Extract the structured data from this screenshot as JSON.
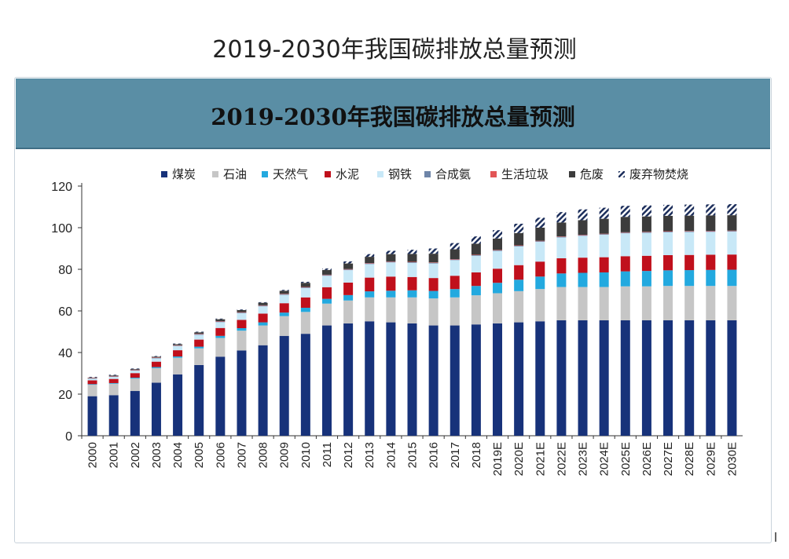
{
  "page_title": "2019-2030年我国碳排放总量预测",
  "colors": {
    "煤炭": "#17327a",
    "石油": "#c6c6c6",
    "天然气": "#23a9df",
    "水泥": "#c0101c",
    "钢铁": "#c8e8f7",
    "合成氨": "#6e85a8",
    "生活垃圾": "#e25556",
    "危废": "#3c3c3c",
    "废弃物焚烧": "hatch"
  },
  "chart_data": {
    "type": "bar",
    "stacked": true,
    "title": "2019-2030年我国碳排放总量预测",
    "xlabel": "",
    "ylabel": "",
    "ylim": [
      0,
      120
    ],
    "yticks": [
      0,
      20,
      40,
      60,
      80,
      100,
      120
    ],
    "grid": false,
    "legend_position": "top",
    "categories": [
      "2000",
      "2001",
      "2002",
      "2003",
      "2004",
      "2005",
      "2006",
      "2007",
      "2008",
      "2009",
      "2010",
      "2011",
      "2012",
      "2013",
      "2014",
      "2015",
      "2016",
      "2017",
      "2018",
      "2019E",
      "2020E",
      "2021E",
      "2022E",
      "2023E",
      "2024E",
      "2025E",
      "2026E",
      "2027E",
      "2028E",
      "2029E",
      "2030E"
    ],
    "series": [
      {
        "name": "煤炭",
        "values": [
          19,
          19.5,
          21.5,
          25.5,
          29.5,
          34,
          38,
          41,
          43.5,
          48,
          49,
          53,
          54,
          55,
          54.5,
          54,
          53,
          53,
          53.5,
          54,
          54.5,
          55,
          55.5,
          55.5,
          55.5,
          55.5,
          55.5,
          55.5,
          55.5,
          55.5,
          55.5
        ]
      },
      {
        "name": "石油",
        "values": [
          5.5,
          5.5,
          6,
          7,
          8,
          8,
          9,
          9.5,
          9.5,
          9.5,
          10.5,
          10.5,
          11,
          11.5,
          12,
          12.5,
          13,
          13.5,
          14,
          14.5,
          15,
          15.5,
          16,
          16,
          16,
          16.3,
          16.3,
          16.5,
          16.5,
          16.5,
          16.5
        ]
      },
      {
        "name": "天然气",
        "values": [
          0.3,
          0.3,
          0.4,
          0.5,
          0.6,
          0.8,
          1,
          1.2,
          1.5,
          1.7,
          2,
          2.3,
          2.6,
          2.9,
          3.2,
          3.4,
          3.6,
          4,
          4.5,
          5,
          5.5,
          6,
          6.5,
          6.8,
          7,
          7.2,
          7.4,
          7.5,
          7.6,
          7.7,
          7.8
        ]
      },
      {
        "name": "水泥",
        "values": [
          1.8,
          2,
          2.2,
          2.6,
          3,
          3.4,
          3.8,
          4,
          4.2,
          4.5,
          5,
          5.6,
          6,
          6.6,
          6.8,
          6.4,
          6.2,
          6.4,
          6.5,
          6.8,
          7,
          7.2,
          7.3,
          7.3,
          7.3,
          7.3,
          7.3,
          7.3,
          7.3,
          7.3,
          7.3
        ]
      },
      {
        "name": "钢铁",
        "values": [
          0.8,
          1,
          1.2,
          1.6,
          2,
          2.3,
          2.8,
          3.2,
          3.5,
          4,
          4.5,
          5.5,
          6,
          6.5,
          6.8,
          6.8,
          7,
          7.5,
          8,
          8.5,
          9,
          9.5,
          10,
          10.5,
          10.8,
          11,
          11,
          11,
          11,
          11,
          11
        ]
      },
      {
        "name": "合成氨",
        "values": [
          0.2,
          0.2,
          0.2,
          0.2,
          0.2,
          0.3,
          0.3,
          0.3,
          0.3,
          0.3,
          0.3,
          0.3,
          0.3,
          0.3,
          0.3,
          0.3,
          0.3,
          0.3,
          0.3,
          0.3,
          0.3,
          0.3,
          0.3,
          0.3,
          0.3,
          0.3,
          0.3,
          0.3,
          0.3,
          0.3,
          0.3
        ]
      },
      {
        "name": "生活垃圾",
        "values": [
          0.2,
          0.2,
          0.2,
          0.2,
          0.2,
          0.2,
          0.2,
          0.2,
          0.2,
          0.2,
          0.2,
          0.2,
          0.2,
          0.2,
          0.2,
          0.2,
          0.2,
          0.2,
          0.2,
          0.2,
          0.2,
          0.2,
          0.2,
          0.2,
          0.2,
          0.2,
          0.2,
          0.2,
          0.2,
          0.2,
          0.2
        ]
      },
      {
        "name": "危废",
        "values": [
          0.2,
          0.3,
          0.3,
          0.4,
          0.5,
          0.7,
          0.9,
          1,
          1.2,
          1.5,
          2,
          2.3,
          2.7,
          3,
          3.5,
          3.8,
          4.2,
          4.7,
          5.3,
          5.5,
          5.9,
          6.3,
          6.7,
          7,
          7.2,
          7.4,
          7.4,
          7.4,
          7.4,
          7.4,
          7.4
        ]
      },
      {
        "name": "废弃物焚烧",
        "values": [
          0.3,
          0.3,
          0.3,
          0.3,
          0.3,
          0.3,
          0.3,
          0.3,
          0.3,
          0.4,
          0.5,
          0.7,
          1,
          1.3,
          1.6,
          2,
          2.5,
          3,
          3.5,
          4,
          4.5,
          4.8,
          5,
          5.2,
          5.3,
          5.3,
          5.3,
          5.3,
          5.3,
          5.3,
          5.3
        ]
      }
    ]
  }
}
